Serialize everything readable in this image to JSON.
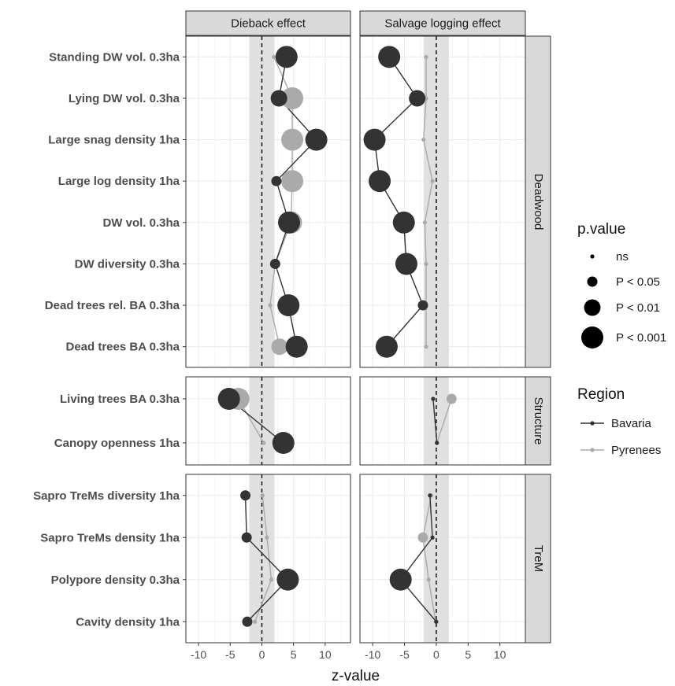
{
  "chart_data": {
    "type": "scatter",
    "facet_columns": [
      "Dieback effect",
      "Salvage logging effect"
    ],
    "facet_rows": [
      "Deadwood",
      "Structure",
      "TreM"
    ],
    "xlabel": "z-value",
    "ylabel": "",
    "xlim": [
      -12,
      14
    ],
    "x_ticks": [
      -10,
      -5,
      0,
      5,
      10
    ],
    "shaded_band": [
      -2,
      2
    ],
    "reference_line_x": 0,
    "grid": true,
    "rows": [
      {
        "facet": "Deadwood",
        "variables": [
          "Standing DW vol. 0.3ha",
          "Lying DW vol. 0.3ha",
          "Large snag density 1ha",
          "Large log density 1ha",
          "DW vol. 0.3ha",
          "DW diversity 0.3ha",
          "Dead trees rel. BA 0.3ha",
          "Dead trees BA 0.3ha"
        ]
      },
      {
        "facet": "Structure",
        "variables": [
          "Living trees BA 0.3ha",
          "Canopy openness 1ha"
        ]
      },
      {
        "facet": "TreM",
        "variables": [
          "Sapro TreMs diversity 1ha",
          "Sapro TreMs density 1ha",
          "Polypore density 0.3ha",
          "Cavity density 1ha"
        ]
      }
    ],
    "legend_placement": "right",
    "legend_pvalue": {
      "title": "p.value",
      "levels": [
        "ns",
        "P < 0.05",
        "P < 0.01",
        "P < 0.001"
      ]
    },
    "legend_region": {
      "title": "Region",
      "levels": [
        "Bavaria",
        "Pyrenees"
      ]
    },
    "colors": {
      "Bavaria": "#333333",
      "Pyrenees": "#aaaaaa"
    },
    "series": [
      {
        "name": "Bavaria",
        "dieback": {
          "Standing DW vol. 0.3ha": [
            3.9,
            "P < 0.001"
          ],
          "Lying DW vol. 0.3ha": [
            2.7,
            "P < 0.01"
          ],
          "Large snag density 1ha": [
            8.6,
            "P < 0.001"
          ],
          "Large log density 1ha": [
            2.3,
            "P < 0.05"
          ],
          "DW vol. 0.3ha": [
            4.3,
            "P < 0.001"
          ],
          "DW diversity 0.3ha": [
            2.1,
            "P < 0.05"
          ],
          "Dead trees rel. BA 0.3ha": [
            4.2,
            "P < 0.001"
          ],
          "Dead trees BA 0.3ha": [
            5.5,
            "P < 0.001"
          ],
          "Living trees BA 0.3ha": [
            -5.2,
            "P < 0.001"
          ],
          "Canopy openness 1ha": [
            3.4,
            "P < 0.001"
          ],
          "Sapro TreMs diversity 1ha": [
            -2.6,
            "P < 0.05"
          ],
          "Sapro TreMs density 1ha": [
            -2.4,
            "P < 0.05"
          ],
          "Polypore density 0.3ha": [
            4.1,
            "P < 0.001"
          ],
          "Cavity density 1ha": [
            -2.3,
            "P < 0.05"
          ]
        },
        "salvage": {
          "Standing DW vol. 0.3ha": [
            -7.4,
            "P < 0.001"
          ],
          "Lying DW vol. 0.3ha": [
            -3.0,
            "P < 0.01"
          ],
          "Large snag density 1ha": [
            -9.7,
            "P < 0.001"
          ],
          "Large log density 1ha": [
            -8.9,
            "P < 0.001"
          ],
          "DW vol. 0.3ha": [
            -5.1,
            "P < 0.001"
          ],
          "DW diversity 0.3ha": [
            -4.7,
            "P < 0.001"
          ],
          "Dead trees rel. BA 0.3ha": [
            -2.1,
            "P < 0.05"
          ],
          "Dead trees BA 0.3ha": [
            -7.8,
            "P < 0.001"
          ],
          "Living trees BA 0.3ha": [
            -0.5,
            "ns"
          ],
          "Canopy openness 1ha": [
            0.1,
            "ns"
          ],
          "Sapro TreMs diversity 1ha": [
            -1.0,
            "ns"
          ],
          "Sapro TreMs density 1ha": [
            -0.6,
            "ns"
          ],
          "Polypore density 0.3ha": [
            -5.6,
            "P < 0.001"
          ],
          "Cavity density 1ha": [
            0.0,
            "ns"
          ]
        }
      },
      {
        "name": "Pyrenees",
        "dieback": {
          "Standing DW vol. 0.3ha": [
            1.9,
            "ns"
          ],
          "Lying DW vol. 0.3ha": [
            4.8,
            "P < 0.001"
          ],
          "Large snag density 1ha": [
            4.8,
            "P < 0.001"
          ],
          "Large log density 1ha": [
            4.8,
            "P < 0.001"
          ],
          "DW vol. 0.3ha": [
            4.6,
            "P < 0.001"
          ],
          "DW diversity 0.3ha": [
            2.1,
            "ns"
          ],
          "Dead trees rel. BA 0.3ha": [
            1.3,
            "ns"
          ],
          "Dead trees BA 0.3ha": [
            2.8,
            "P < 0.01"
          ],
          "Living trees BA 0.3ha": [
            -3.7,
            "P < 0.001"
          ],
          "Canopy openness 1ha": [
            0.3,
            "ns"
          ],
          "Sapro TreMs diversity 1ha": [
            0.1,
            "ns"
          ],
          "Sapro TreMs density 1ha": [
            0.8,
            "ns"
          ],
          "Polypore density 0.3ha": [
            1.5,
            "ns"
          ],
          "Cavity density 1ha": [
            -1.1,
            "ns"
          ]
        },
        "salvage": {
          "Standing DW vol. 0.3ha": [
            -1.6,
            "ns"
          ],
          "Lying DW vol. 0.3ha": [
            -1.6,
            "ns"
          ],
          "Large snag density 1ha": [
            -2.0,
            "ns"
          ],
          "Large log density 1ha": [
            -0.6,
            "ns"
          ],
          "DW vol. 0.3ha": [
            -1.8,
            "ns"
          ],
          "DW diversity 0.3ha": [
            -1.6,
            "ns"
          ],
          "Dead trees rel. BA 0.3ha": [
            -1.6,
            "ns"
          ],
          "Dead trees BA 0.3ha": [
            -1.6,
            "ns"
          ],
          "Living trees BA 0.3ha": [
            2.4,
            "P < 0.05"
          ],
          "Canopy openness 1ha": [
            0.1,
            "ns"
          ],
          "Sapro TreMs diversity 1ha": [
            -0.8,
            "ns"
          ],
          "Sapro TreMs density 1ha": [
            -2.1,
            "P < 0.05"
          ],
          "Polypore density 0.3ha": [
            -1.2,
            "ns"
          ],
          "Cavity density 1ha": [
            -0.1,
            "ns"
          ]
        }
      }
    ]
  }
}
